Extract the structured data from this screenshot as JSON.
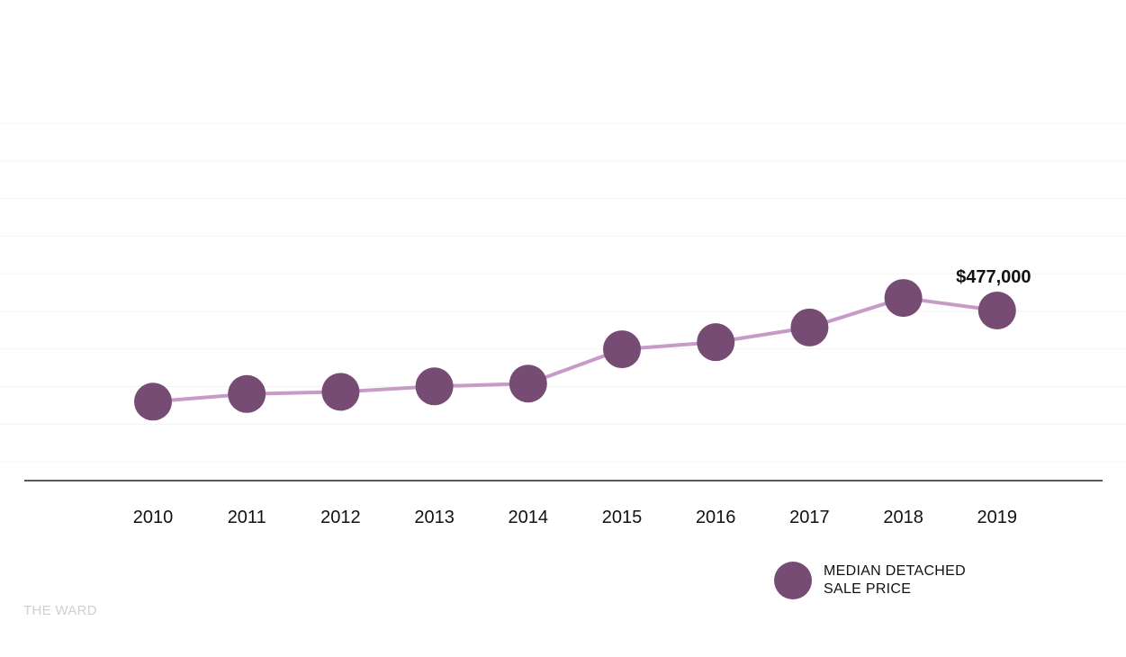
{
  "chart_data": {
    "type": "line",
    "x": [
      "2010",
      "2011",
      "2012",
      "2013",
      "2014",
      "2015",
      "2016",
      "2017",
      "2018",
      "2019"
    ],
    "series": [
      {
        "name": "MEDIAN DETACHED SALE PRICE",
        "values": [
          310000,
          324000,
          328000,
          338000,
          343000,
          406000,
          419000,
          446000,
          500000,
          477000
        ]
      }
    ],
    "annotations": [
      {
        "x": "2019",
        "text": "$477,000"
      }
    ],
    "ylim": [
      200000,
      820000
    ],
    "grid": true,
    "legend_position": "bottom-right",
    "colors": {
      "line": "#c79bc8",
      "marker": "#764c74",
      "grid": "#f4f4f4",
      "axis": "#222222"
    }
  },
  "legend": {
    "line1": "MEDIAN DETACHED",
    "line2": "SALE PRICE"
  },
  "credit": "THE WARD"
}
